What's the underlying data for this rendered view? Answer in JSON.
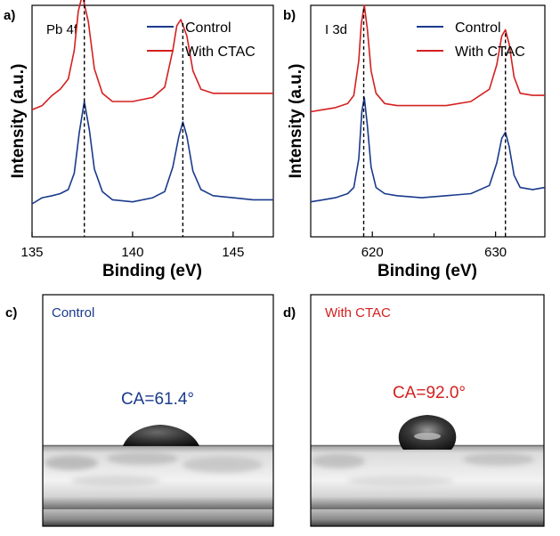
{
  "chart_data": [
    {
      "type": "line",
      "panel_label": "a)",
      "inset_label": "Pb 4f",
      "xlabel": "Binding (eV)",
      "ylabel": "Intensity (a.u.)",
      "xlim": [
        135,
        147
      ],
      "xticks": [
        135,
        140,
        145
      ],
      "peak_markers": [
        137.6,
        142.5
      ],
      "series": [
        {
          "name": "Control",
          "color": "#1a3a8c",
          "x": [
            135,
            135.5,
            136,
            136.4,
            136.8,
            137.1,
            137.35,
            137.6,
            137.85,
            138.1,
            138.5,
            139,
            140,
            141,
            141.6,
            142,
            142.3,
            142.5,
            142.7,
            143,
            143.4,
            144,
            145,
            146,
            147
          ],
          "y": [
            0.1,
            0.13,
            0.14,
            0.15,
            0.17,
            0.25,
            0.45,
            0.6,
            0.46,
            0.27,
            0.16,
            0.12,
            0.11,
            0.13,
            0.16,
            0.28,
            0.43,
            0.5,
            0.43,
            0.26,
            0.17,
            0.14,
            0.13,
            0.12,
            0.12
          ]
        },
        {
          "name": "With CTAC",
          "color": "#d42020",
          "x": [
            135,
            135.5,
            136,
            136.4,
            136.8,
            137.1,
            137.3,
            137.5,
            137.8,
            138.1,
            138.5,
            139,
            140,
            141,
            141.6,
            142,
            142.2,
            142.4,
            142.7,
            143,
            143.4,
            144,
            145,
            146,
            147
          ],
          "y": [
            0.56,
            0.58,
            0.63,
            0.66,
            0.71,
            0.85,
            1.04,
            1.12,
            0.99,
            0.76,
            0.64,
            0.6,
            0.6,
            0.62,
            0.67,
            0.85,
            0.97,
            1.0,
            0.92,
            0.75,
            0.66,
            0.64,
            0.64,
            0.64,
            0.64
          ]
        }
      ],
      "legend": "top-right"
    },
    {
      "type": "line",
      "panel_label": "b)",
      "inset_label": "I 3d",
      "xlabel": "Binding (eV)",
      "ylabel": "Intensity (a.u.)",
      "xlim": [
        615,
        634
      ],
      "xticks": [
        620,
        630
      ],
      "minor_xticks": [
        615,
        625
      ],
      "peak_markers": [
        619.3,
        630.8
      ],
      "series": [
        {
          "name": "Control",
          "color": "#1a3a8c",
          "x": [
            615,
            616,
            617,
            618,
            618.5,
            618.9,
            619.15,
            619.35,
            619.6,
            619.9,
            620.3,
            621,
            622,
            624,
            626,
            628,
            629.5,
            630.1,
            630.5,
            630.8,
            631.1,
            631.5,
            632,
            633,
            634
          ],
          "y": [
            0.11,
            0.12,
            0.13,
            0.15,
            0.18,
            0.32,
            0.55,
            0.62,
            0.48,
            0.28,
            0.18,
            0.15,
            0.14,
            0.13,
            0.14,
            0.15,
            0.19,
            0.3,
            0.42,
            0.45,
            0.38,
            0.24,
            0.18,
            0.17,
            0.18
          ]
        },
        {
          "name": "With CTAC",
          "color": "#d42020",
          "x": [
            615,
            616,
            617,
            618,
            618.5,
            618.9,
            619.1,
            619.35,
            619.6,
            619.9,
            620.3,
            621,
            622,
            624,
            626,
            628,
            629.5,
            630.1,
            630.5,
            630.8,
            631.1,
            631.5,
            632,
            633,
            634
          ],
          "y": [
            0.55,
            0.56,
            0.57,
            0.59,
            0.63,
            0.8,
            0.98,
            1.07,
            0.95,
            0.75,
            0.64,
            0.59,
            0.58,
            0.58,
            0.58,
            0.6,
            0.66,
            0.78,
            0.92,
            0.95,
            0.88,
            0.72,
            0.64,
            0.63,
            0.63
          ]
        }
      ],
      "legend": "top-right"
    }
  ],
  "photos": [
    {
      "panel_label": "c)",
      "sample_label": "Control",
      "sample_color": "#1a3a8c",
      "contact_angle": "CA=61.4°",
      "ca_color": "#1a3a8c",
      "contact_angle_deg": 61.4
    },
    {
      "panel_label": "d)",
      "sample_label": "With CTAC",
      "sample_color": "#d42020",
      "contact_angle": "CA=92.0°",
      "ca_color": "#d42020",
      "contact_angle_deg": 92.0
    }
  ]
}
